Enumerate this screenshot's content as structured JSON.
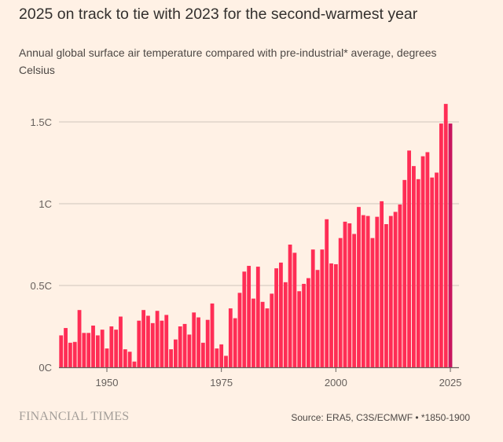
{
  "chart_data": {
    "type": "bar",
    "title": "2025 on track to tie with 2023 for the second-warmest year",
    "subtitle": "Annual global surface air temperature compared with pre-industrial* average, degrees Celsius",
    "xlabel": "",
    "ylabel": "",
    "ylim": [
      0,
      1.65
    ],
    "grid": true,
    "y_ticks": [
      {
        "value": 0,
        "label": "0C"
      },
      {
        "value": 0.5,
        "label": "0.5C"
      },
      {
        "value": 1,
        "label": "1C"
      },
      {
        "value": 1.5,
        "label": "1.5C"
      }
    ],
    "x_ticks": [
      {
        "value": 1950,
        "label": "1950"
      },
      {
        "value": 1975,
        "label": "1975"
      },
      {
        "value": 2000,
        "label": "2000"
      },
      {
        "value": 2025,
        "label": "2025"
      }
    ],
    "x_start": 1940,
    "x": [
      1940,
      1941,
      1942,
      1943,
      1944,
      1945,
      1946,
      1947,
      1948,
      1949,
      1950,
      1951,
      1952,
      1953,
      1954,
      1955,
      1956,
      1957,
      1958,
      1959,
      1960,
      1961,
      1962,
      1963,
      1964,
      1965,
      1966,
      1967,
      1968,
      1969,
      1970,
      1971,
      1972,
      1973,
      1974,
      1975,
      1976,
      1977,
      1978,
      1979,
      1980,
      1981,
      1982,
      1983,
      1984,
      1985,
      1986,
      1987,
      1988,
      1989,
      1990,
      1991,
      1992,
      1993,
      1994,
      1995,
      1996,
      1997,
      1998,
      1999,
      2000,
      2001,
      2002,
      2003,
      2004,
      2005,
      2006,
      2007,
      2008,
      2009,
      2010,
      2011,
      2012,
      2013,
      2014,
      2015,
      2016,
      2017,
      2018,
      2019,
      2020,
      2021,
      2022,
      2023,
      2024,
      2025
    ],
    "values": [
      0.195,
      0.24,
      0.15,
      0.155,
      0.35,
      0.21,
      0.21,
      0.255,
      0.195,
      0.23,
      0.115,
      0.25,
      0.23,
      0.31,
      0.11,
      0.095,
      0.035,
      0.285,
      0.35,
      0.315,
      0.27,
      0.345,
      0.285,
      0.32,
      0.11,
      0.17,
      0.25,
      0.265,
      0.2,
      0.335,
      0.305,
      0.15,
      0.29,
      0.39,
      0.115,
      0.14,
      0.07,
      0.36,
      0.3,
      0.455,
      0.585,
      0.62,
      0.42,
      0.615,
      0.4,
      0.36,
      0.45,
      0.605,
      0.64,
      0.52,
      0.75,
      0.7,
      0.465,
      0.51,
      0.545,
      0.72,
      0.595,
      0.72,
      0.905,
      0.635,
      0.63,
      0.79,
      0.89,
      0.88,
      0.815,
      0.98,
      0.93,
      0.925,
      0.79,
      0.92,
      1.015,
      0.875,
      0.925,
      0.95,
      0.995,
      1.145,
      1.325,
      1.23,
      1.15,
      1.29,
      1.315,
      1.16,
      1.19,
      1.49,
      1.61,
      1.49
    ],
    "colors": {
      "bar": "#ff2d55",
      "highlight": "#c8155e",
      "highlight_year": 2025,
      "background": "#fff1e5"
    }
  },
  "footer": {
    "brand": "FINANCIAL TIMES",
    "source": "Source: ERA5, C3S/ECMWF • *1850-1900"
  }
}
